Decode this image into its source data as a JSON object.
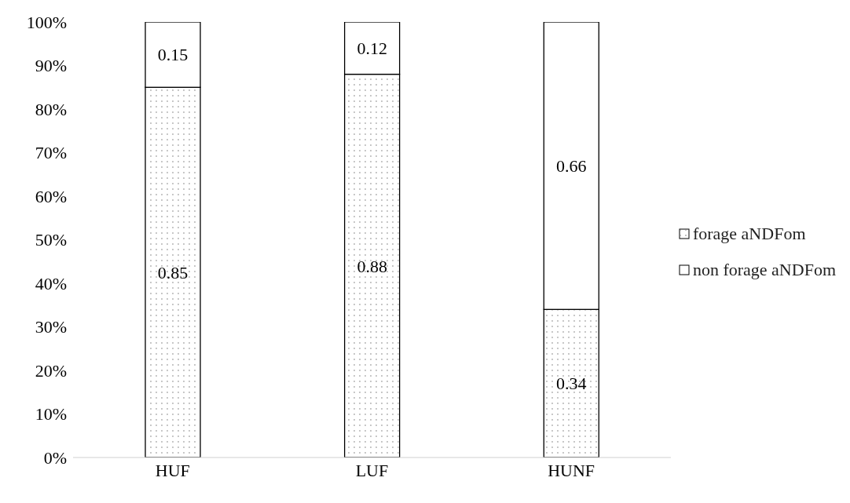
{
  "chart_data": {
    "type": "bar",
    "stacked": true,
    "categories": [
      "HUF",
      "LUF",
      "HUNF"
    ],
    "series": [
      {
        "name": "forage aNDFom",
        "color": "#ffffff",
        "values": [
          0.85,
          0.88,
          0.34
        ]
      },
      {
        "name": "non forage aNDFom",
        "color": "#ffffff",
        "values": [
          0.15,
          0.12,
          0.66
        ]
      }
    ],
    "ylim": [
      0,
      1
    ],
    "yticks": [
      {
        "value": 0,
        "label": "0%"
      },
      {
        "value": 0.1,
        "label": "10%"
      },
      {
        "value": 0.2,
        "label": "20%"
      },
      {
        "value": 0.3,
        "label": "30%"
      },
      {
        "value": 0.4,
        "label": "40%"
      },
      {
        "value": 0.5,
        "label": "50%"
      },
      {
        "value": 0.6,
        "label": "60%"
      },
      {
        "value": 0.7,
        "label": "70%"
      },
      {
        "value": 0.8,
        "label": "80%"
      },
      {
        "value": 0.9,
        "label": "90%"
      },
      {
        "value": 1,
        "label": "100%"
      }
    ],
    "data_labels": true,
    "legend": "right",
    "grid": false
  }
}
